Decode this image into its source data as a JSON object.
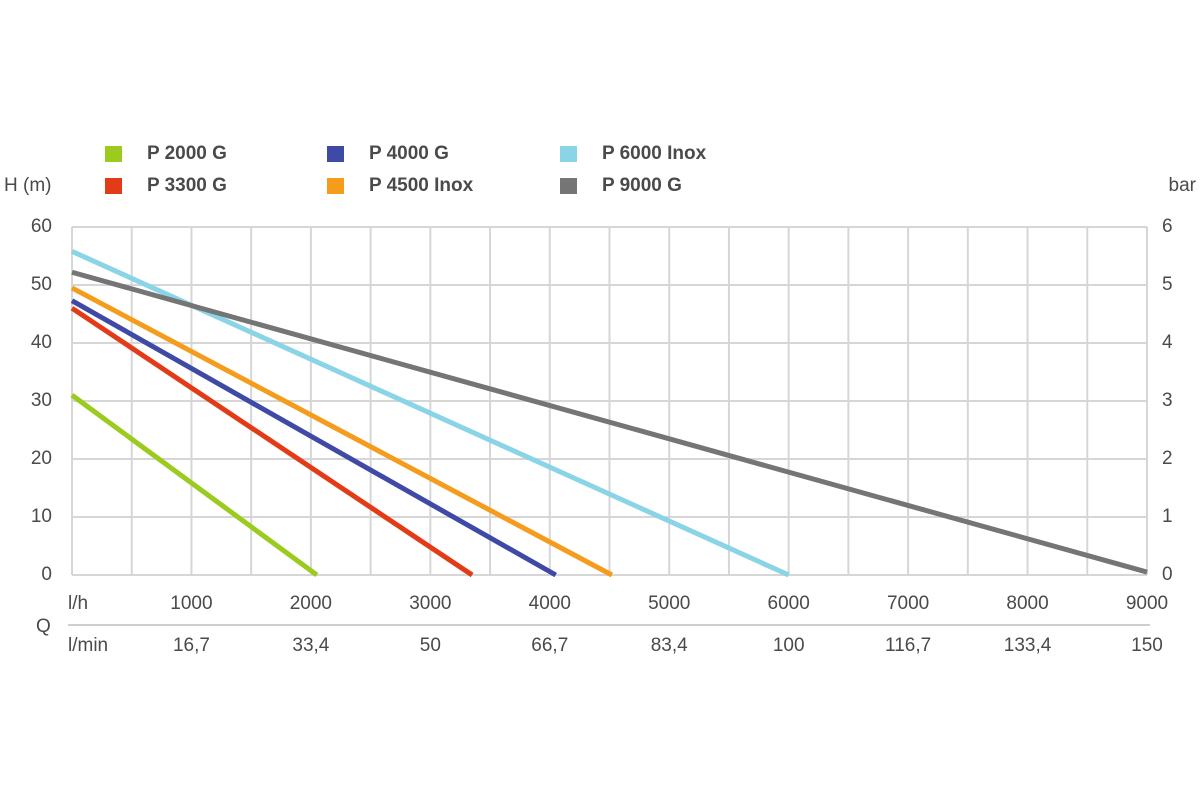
{
  "chart_data": {
    "type": "line",
    "ylabel": "H (m)",
    "y2label": "bar",
    "qlabel": "Q",
    "xlabel": "l/h",
    "x2label": "l/min",
    "xlim": [
      0,
      9000
    ],
    "xticks": [
      1000,
      2000,
      3000,
      4000,
      5000,
      6000,
      7000,
      8000,
      9000
    ],
    "x2ticks": [
      {
        "value": 1000,
        "label": "16,7"
      },
      {
        "value": 2000,
        "label": "33,4"
      },
      {
        "value": 3000,
        "label": "50"
      },
      {
        "value": 4000,
        "label": "66,7"
      },
      {
        "value": 5000,
        "label": "83,4"
      },
      {
        "value": 6000,
        "label": "100"
      },
      {
        "value": 7000,
        "label": "116,7"
      },
      {
        "value": 8000,
        "label": "133,4"
      },
      {
        "value": 9000,
        "label": "150"
      }
    ],
    "ylim": [
      0,
      60
    ],
    "yticks": [
      0,
      10,
      20,
      30,
      40,
      50,
      60
    ],
    "y2lim": [
      0,
      6
    ],
    "y2ticks": [
      0,
      1,
      2,
      3,
      4,
      5,
      6
    ],
    "grid": true,
    "minor_grid": true,
    "series": [
      {
        "name": "P 2000 G",
        "color": "#9bcb1f",
        "x": [
          0,
          2050
        ],
        "values": [
          31,
          0
        ]
      },
      {
        "name": "P 3300 G",
        "color": "#e33b17",
        "x": [
          0,
          3350
        ],
        "values": [
          46,
          0
        ]
      },
      {
        "name": "P 4000 G",
        "color": "#3f4aa6",
        "x": [
          0,
          4050
        ],
        "values": [
          47.3,
          0
        ]
      },
      {
        "name": "P 4500 Inox",
        "color": "#f59c1d",
        "x": [
          0,
          4520
        ],
        "values": [
          49.5,
          0
        ]
      },
      {
        "name": "P 6000 Inox",
        "color": "#89d4e6",
        "x": [
          0,
          6000
        ],
        "values": [
          55.8,
          0
        ]
      },
      {
        "name": "P 9000 G",
        "color": "#757575",
        "x": [
          0,
          9000
        ],
        "values": [
          52.2,
          0.5
        ]
      }
    ]
  }
}
